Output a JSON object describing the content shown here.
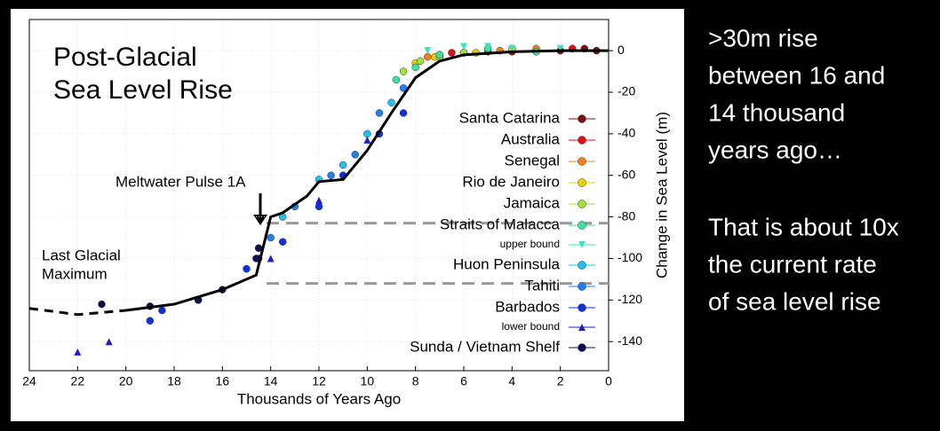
{
  "chart_data": {
    "type": "scatter",
    "title": [
      "Post-Glacial",
      "Sea Level Rise"
    ],
    "xlabel": "Thousands of Years Ago",
    "ylabel": "Change in Sea Level (m)",
    "xlim": [
      24,
      0
    ],
    "xticks": [
      24,
      22,
      20,
      18,
      16,
      14,
      12,
      10,
      8,
      6,
      4,
      2,
      0
    ],
    "ylim": [
      -154,
      15
    ],
    "yticks": [
      0,
      -20,
      -40,
      -60,
      -80,
      -100,
      -120,
      -140
    ],
    "grid": true,
    "annotations": [
      {
        "text": [
          "Last Glacial",
          "Maximum"
        ]
      },
      {
        "text": [
          "Meltwater Pulse 1A"
        ]
      }
    ],
    "reference_lines": [
      -83,
      -112
    ],
    "trend_dashed": {
      "x": [
        24,
        22,
        20
      ],
      "y": [
        -124,
        -127,
        -125
      ]
    },
    "trend_solid": {
      "x": [
        20,
        18,
        16,
        14.6,
        14,
        13.5,
        12.5,
        12,
        11,
        10,
        9,
        8,
        7,
        6,
        4,
        2,
        0
      ],
      "y": [
        -125,
        -122,
        -115,
        -108,
        -80,
        -78,
        -70,
        -63,
        -62,
        -48,
        -30,
        -13,
        -5,
        -2,
        -0.5,
        0,
        0
      ]
    },
    "series": [
      {
        "name": "Santa Catarina",
        "color": "#7a1010",
        "marker": "circle",
        "x": [
          6,
          4,
          2,
          1,
          0.5
        ],
        "values": [
          -1,
          -0.5,
          0,
          1,
          0
        ]
      },
      {
        "name": "Australia",
        "color": "#e01010",
        "marker": "circle",
        "x": [
          7,
          6.5,
          5,
          3,
          1.5
        ],
        "values": [
          -2,
          -1,
          -0.5,
          0,
          1
        ]
      },
      {
        "name": "Senegal",
        "color": "#f08020",
        "marker": "circle",
        "x": [
          7.5,
          6,
          4.5,
          3
        ],
        "values": [
          -3,
          -1,
          0,
          1
        ]
      },
      {
        "name": "Rio de Janeiro",
        "color": "#e8d000",
        "marker": "circle",
        "x": [
          8,
          7.2,
          5.5,
          4
        ],
        "values": [
          -6,
          -3,
          -1,
          1
        ]
      },
      {
        "name": "Jamaica",
        "color": "#a0e040",
        "marker": "circle",
        "x": [
          8.5,
          7.8,
          7,
          6
        ],
        "values": [
          -10,
          -5,
          -3,
          -1
        ]
      },
      {
        "name": "Straits of Malacca",
        "color": "#40e0a0",
        "marker": "circle",
        "x": [
          8.8,
          8,
          7,
          5,
          3
        ],
        "values": [
          -14,
          -8,
          -2,
          1,
          -0.5
        ]
      },
      {
        "name": "upper bound",
        "color": "#40e0c0",
        "marker": "triangle-down",
        "minor": true,
        "x": [
          7.5,
          6,
          5,
          4,
          2
        ],
        "values": [
          0,
          2,
          2,
          1,
          1
        ]
      },
      {
        "name": "Huon Peninsula",
        "color": "#20c0f0",
        "marker": "circle",
        "x": [
          13.5,
          12,
          11,
          10,
          9
        ],
        "values": [
          -80,
          -62,
          -55,
          -40,
          -25
        ]
      },
      {
        "name": "Tahiti",
        "color": "#2080f0",
        "marker": "circle",
        "x": [
          14,
          13,
          11.5,
          10.5,
          9.5,
          8.5
        ],
        "values": [
          -90,
          -75,
          -60,
          -50,
          -30,
          -18
        ]
      },
      {
        "name": "Barbados",
        "color": "#1030e0",
        "marker": "circle",
        "x": [
          19,
          18.5,
          17,
          15,
          14.5,
          13.5,
          12,
          11,
          9.5,
          8.5
        ],
        "values": [
          -130,
          -125,
          -120,
          -105,
          -100,
          -92,
          -75,
          -60,
          -40,
          -30
        ]
      },
      {
        "name": "lower bound",
        "color": "#2020c0",
        "marker": "triangle",
        "minor": true,
        "x": [
          22,
          20.7,
          14,
          12,
          10
        ],
        "values": [
          -145,
          -140,
          -100,
          -72,
          -43
        ]
      },
      {
        "name": "Sunda / Vietnam Shelf",
        "color": "#101050",
        "marker": "circle",
        "x": [
          21,
          19,
          17,
          16,
          14.6,
          14.5
        ],
        "values": [
          -122,
          -123,
          -120,
          -115,
          -100,
          -95
        ]
      }
    ]
  },
  "side_text": [
    [
      ">30m rise",
      "between 16 and",
      "14 thousand",
      "years ago…"
    ],
    [
      "That is about 10x",
      "the current rate",
      "of sea level rise"
    ]
  ]
}
